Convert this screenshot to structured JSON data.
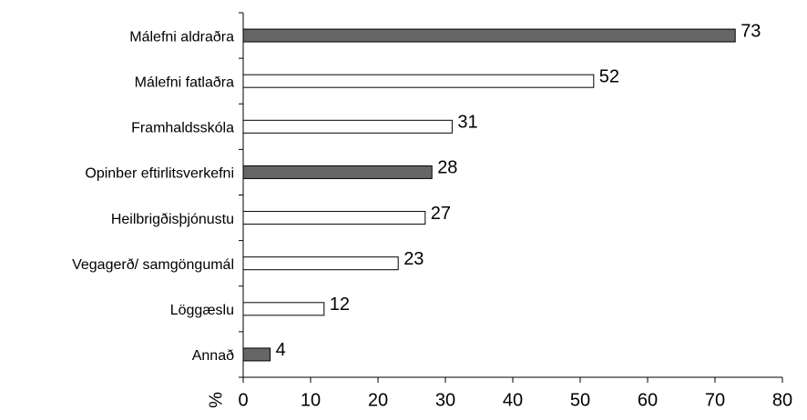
{
  "chart_data": {
    "type": "bar",
    "orientation": "horizontal",
    "categories": [
      "Málefni aldraðra",
      "Málefni fatlaðra",
      "Framhaldsskóla",
      "Opinber eftirlitsverkefni",
      "Heilbrigðisþjónustu",
      "Vegagerð/ samgöngumál",
      "Löggæslu",
      "Annað"
    ],
    "values": [
      73,
      52,
      31,
      28,
      27,
      23,
      12,
      4
    ],
    "colors": [
      "#666666",
      "#ffffff",
      "#ffffff",
      "#666666",
      "#ffffff",
      "#ffffff",
      "#ffffff",
      "#666666"
    ],
    "xlabel": "%",
    "xlim": [
      0,
      80
    ],
    "xticks": [
      0,
      10,
      20,
      30,
      40,
      50,
      60,
      70,
      80
    ],
    "grid": false
  }
}
